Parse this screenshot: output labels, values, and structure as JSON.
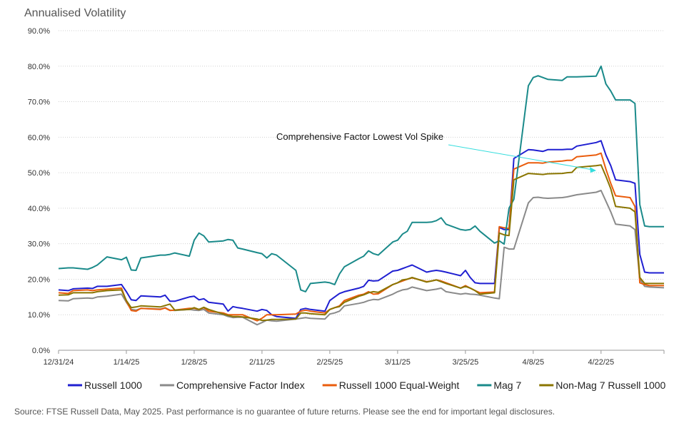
{
  "title": "Annualised Volatility",
  "source": "Source: FTSE Russell Data, May 2025. Past performance is no guarantee of future returns. Please see the end for important legal disclosures.",
  "chart_data": {
    "type": "line",
    "ylabel": "",
    "xlabel": "",
    "ylim": [
      0,
      90
    ],
    "yticks": [
      0,
      10,
      20,
      30,
      40,
      50,
      60,
      70,
      80,
      90
    ],
    "ytick_labels": [
      "0.0%",
      "10.0%",
      "20.0%",
      "30.0%",
      "40.0%",
      "50.0%",
      "60.0%",
      "70.0%",
      "80.0%",
      "90.0%"
    ],
    "x_dates": [
      "12/31/24",
      "1/2/25",
      "1/3/25",
      "1/6/25",
      "1/7/25",
      "1/8/25",
      "1/10/25",
      "1/13/25",
      "1/14/25",
      "1/15/25",
      "1/16/25",
      "1/17/25",
      "1/21/25",
      "1/22/25",
      "1/23/25",
      "1/24/25",
      "1/27/25",
      "1/28/25",
      "1/29/25",
      "1/30/25",
      "1/31/25",
      "2/3/25",
      "2/4/25",
      "2/5/25",
      "2/6/25",
      "2/7/25",
      "2/10/25",
      "2/11/25",
      "2/12/25",
      "2/13/25",
      "2/14/25",
      "2/18/25",
      "2/19/25",
      "2/20/25",
      "2/21/25",
      "2/24/25",
      "2/25/25",
      "2/26/25",
      "2/27/25",
      "2/28/25",
      "3/3/25",
      "3/4/25",
      "3/5/25",
      "3/6/25",
      "3/7/25",
      "3/10/25",
      "3/11/25",
      "3/12/25",
      "3/13/25",
      "3/14/25",
      "3/17/25",
      "3/18/25",
      "3/19/25",
      "3/20/25",
      "3/21/25",
      "3/24/25",
      "3/25/25",
      "3/26/25",
      "3/27/25",
      "3/28/25",
      "3/31/25",
      "4/1/25",
      "4/2/25",
      "4/3/25",
      "4/4/25",
      "4/7/25",
      "4/8/25",
      "4/9/25",
      "4/10/25",
      "4/11/25",
      "4/14/25",
      "4/15/25",
      "4/16/25",
      "4/17/25",
      "4/21/25",
      "4/22/25",
      "4/23/25",
      "4/24/25",
      "4/25/25",
      "4/28/25",
      "4/29/25",
      "4/30/25",
      "5/1/25",
      "5/2/25",
      "5/5/25"
    ],
    "x_ticks": [
      "12/31/24",
      "1/14/25",
      "1/28/25",
      "2/11/25",
      "2/25/25",
      "3/11/25",
      "3/25/25",
      "4/8/25",
      "4/22/25"
    ],
    "series": [
      {
        "name": "Russell 1000",
        "color": "#1f1fd1",
        "values": [
          17,
          16.8,
          17.3,
          17.5,
          17.4,
          18,
          18,
          18.5,
          16.5,
          14.2,
          14,
          15.3,
          15,
          15.5,
          13.8,
          13.8,
          15,
          15.2,
          14.2,
          14.5,
          13.5,
          13,
          11,
          12.3,
          12,
          11.8,
          11,
          11.5,
          11.2,
          10,
          9.5,
          9,
          11.5,
          11.8,
          11.5,
          11,
          14,
          15,
          16,
          16.5,
          17.5,
          18,
          19.7,
          19.5,
          19.6,
          22.3,
          22.5,
          23,
          23.5,
          24,
          22,
          22.3,
          22.5,
          22.3,
          22,
          21,
          22.5,
          20.5,
          19,
          18.8,
          18.8,
          34.6,
          34,
          34,
          54,
          56.5,
          56.4,
          56.2,
          56,
          56.5,
          56.5,
          56.6,
          56.6,
          57.5,
          58.5,
          59,
          55,
          52,
          48,
          47.5,
          47,
          27,
          22,
          21.8,
          21.8
        ]
      },
      {
        "name": "Comprehensive Factor Index",
        "color": "#8a8a8a",
        "values": [
          14,
          13.9,
          14.5,
          14.7,
          14.6,
          15,
          15.2,
          15.8,
          13.5,
          11.5,
          11.3,
          11.8,
          11.6,
          12,
          11.3,
          11.2,
          11.5,
          11.3,
          11.2,
          11.5,
          10.5,
          10,
          9.5,
          9.2,
          9.3,
          9.3,
          7.2,
          7.8,
          8.5,
          8.3,
          8.2,
          8.8,
          9,
          9.2,
          9,
          8.8,
          10.2,
          10.5,
          11,
          12.5,
          13.2,
          13.5,
          14,
          14.3,
          14.2,
          15.8,
          16.5,
          17,
          17.2,
          17.8,
          16.8,
          17,
          17.2,
          17.5,
          16.5,
          15.8,
          16,
          15.8,
          15.7,
          15.5,
          14.7,
          14.5,
          29,
          28.5,
          28.5,
          41.5,
          43,
          43.1,
          42.9,
          42.8,
          43,
          43.2,
          43.5,
          43.8,
          44.5,
          45,
          42,
          39,
          35.5,
          35,
          34,
          20,
          18,
          17.8,
          17.6
        ]
      },
      {
        "name": "Russell 1000 Equal-Weight",
        "color": "#ea5c0c",
        "values": [
          16.2,
          16,
          16.8,
          17,
          16.8,
          17,
          17.2,
          17.5,
          13.8,
          11.2,
          11,
          11.8,
          11.5,
          11.9,
          11.2,
          11.3,
          11.8,
          11.8,
          11.5,
          12,
          11,
          10.5,
          10,
          10,
          10,
          10,
          8.3,
          9,
          10,
          10,
          10,
          10.2,
          11,
          11.3,
          11,
          10.5,
          11.5,
          12,
          12.5,
          14,
          15.5,
          15.8,
          16.5,
          15.8,
          15.9,
          18.5,
          19,
          19.5,
          20,
          20.4,
          19.3,
          19.5,
          19.8,
          19.5,
          19,
          17.5,
          18.2,
          17.5,
          16.8,
          16.2,
          16.4,
          34.8,
          34.5,
          34.3,
          51,
          52.8,
          52.8,
          52.8,
          52.7,
          53,
          53.3,
          53.5,
          53.5,
          54.5,
          55,
          55.5,
          51,
          47,
          43.5,
          43,
          40.5,
          19,
          18.5,
          18.2,
          18.2
        ]
      },
      {
        "name": "Mag 7",
        "color": "#1a8a8a",
        "values": [
          23,
          23.2,
          23.2,
          22.8,
          23.3,
          24,
          26.3,
          25.5,
          26.2,
          22.6,
          22.5,
          26,
          26.8,
          26.8,
          27,
          27.4,
          26.5,
          31,
          33,
          32.2,
          30.5,
          30.8,
          31.2,
          31,
          28.8,
          28.5,
          27.5,
          27.2,
          26,
          27.2,
          26.8,
          22.5,
          17,
          16.5,
          18.8,
          19.2,
          19,
          18.5,
          21.5,
          23.5,
          25.8,
          26.5,
          28,
          27.2,
          26.8,
          30.5,
          31,
          32.7,
          33.5,
          36,
          36,
          36.1,
          36.5,
          37.3,
          35.5,
          34,
          33.8,
          34,
          35,
          33.5,
          30.2,
          30.8,
          29.9,
          40,
          42.5,
          74.5,
          76.8,
          77.3,
          76.8,
          76.3,
          76,
          77,
          77,
          77,
          77.2,
          80,
          75,
          73,
          70.5,
          70.5,
          69.5,
          41,
          35,
          34.8,
          34.8
        ]
      },
      {
        "name": "Non-Mag 7 Russell 1000",
        "color": "#8a7500",
        "values": [
          15.5,
          15.6,
          16.2,
          16.2,
          16.2,
          16.5,
          16.8,
          17,
          14,
          12,
          12.2,
          12.5,
          12.2,
          12.6,
          13,
          11.3,
          11.5,
          12,
          11.5,
          12.1,
          11.5,
          10.2,
          9.8,
          9.5,
          9.5,
          9.4,
          8.8,
          8.4,
          8.5,
          8.7,
          8.7,
          8.8,
          10.5,
          10.5,
          10.3,
          10,
          11.5,
          12,
          12.3,
          13.5,
          15.2,
          15.6,
          16.2,
          16.5,
          16.3,
          18.5,
          19,
          19.8,
          20,
          20.5,
          19.2,
          19.5,
          19.8,
          19.3,
          18.8,
          17.5,
          18,
          17.5,
          16.8,
          15.8,
          16.2,
          33,
          32.5,
          32.3,
          48,
          49.8,
          49.7,
          49.6,
          49.5,
          49.7,
          49.8,
          50,
          50.1,
          51.5,
          52,
          52.2,
          49,
          45.5,
          40.5,
          40,
          39,
          20.5,
          18.8,
          18.8,
          18.8
        ]
      }
    ],
    "annotation": {
      "text": "Comprehensive Factor Lowest Vol Spike",
      "target_date": "4/21/25",
      "target_value": 50.6,
      "arrow_color": "#33dddd"
    },
    "grid": "horizontal-dotted",
    "legend": "bottom"
  }
}
